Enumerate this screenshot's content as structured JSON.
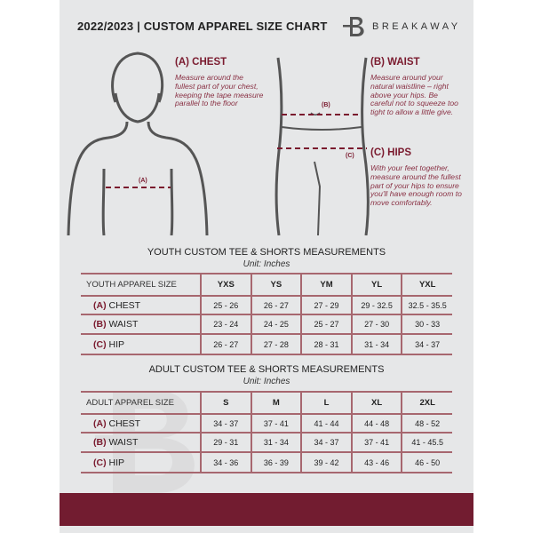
{
  "header": {
    "title": "2022/2023  |  CUSTOM APPAREL SIZE CHART",
    "brand": "BREAKAWAY",
    "logo_letter": "B"
  },
  "measure": {
    "chest": {
      "heading": "(A) CHEST",
      "text": "Measure around the fullest part of your chest, keeping the tape measure parallel to the floor",
      "tag": "(A)"
    },
    "waist": {
      "heading": "(B) WAIST",
      "text": "Measure around your natural waistline – right above your hips. Be careful not to squeeze too tight to allow a little give.",
      "tag": "(B)"
    },
    "hips": {
      "heading": "(C) HIPS",
      "text": "With your feet together, measure around the fullest part of your hips to ensure you'll have enough room to move comfortably.",
      "tag": "(C)"
    }
  },
  "youth": {
    "title": "YOUTH CUSTOM TEE & SHORTS MEASUREMENTS",
    "unit": "Unit: Inches",
    "header": [
      "YOUTH APPAREL SIZE",
      "YXS",
      "YS",
      "YM",
      "YL",
      "YXL"
    ],
    "rows": [
      {
        "code": "(A)",
        "name": "CHEST",
        "values": [
          "25 - 26",
          "26 - 27",
          "27 - 29",
          "29 - 32.5",
          "32.5 - 35.5"
        ]
      },
      {
        "code": "(B)",
        "name": "WAIST",
        "values": [
          "23 - 24",
          "24 - 25",
          "25 - 27",
          "27 - 30",
          "30 - 33"
        ]
      },
      {
        "code": "(C)",
        "name": "HIP",
        "values": [
          "26 - 27",
          "27 - 28",
          "28 - 31",
          "31 - 34",
          "34 - 37"
        ]
      }
    ]
  },
  "adult": {
    "title": "ADULT CUSTOM TEE & SHORTS MEASUREMENTS",
    "unit": "Unit: Inches",
    "header": [
      "ADULT APPAREL SIZE",
      "S",
      "M",
      "L",
      "XL",
      "2XL"
    ],
    "rows": [
      {
        "code": "(A)",
        "name": "CHEST",
        "values": [
          "34 - 37",
          "37 - 41",
          "41 - 44",
          "44 - 48",
          "48 - 52"
        ]
      },
      {
        "code": "(B)",
        "name": "WAIST",
        "values": [
          "29 - 31",
          "31 - 34",
          "34 - 37",
          "37 - 41",
          "41 - 45.5"
        ]
      },
      {
        "code": "(C)",
        "name": "HIP",
        "values": [
          "34 - 36",
          "36 - 39",
          "39 - 42",
          "43 - 46",
          "46 - 50"
        ]
      }
    ]
  },
  "colors": {
    "accent": "#721c30",
    "page": "#e6e7e8"
  }
}
